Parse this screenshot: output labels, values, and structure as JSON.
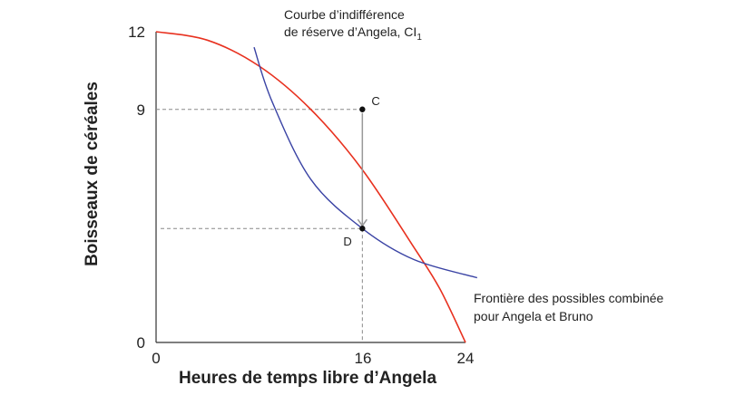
{
  "chart_data": {
    "type": "line",
    "xlabel": "Heures de temps libre d’Angela",
    "ylabel": "Boisseaux de céréales",
    "xlim": [
      0,
      24
    ],
    "ylim": [
      0,
      12
    ],
    "x_ticks": [
      "0",
      "16",
      "24"
    ],
    "y_ticks": [
      "0",
      "9",
      "12"
    ],
    "grid": false,
    "series": [
      {
        "name": "Frontière des possibles combinée pour Angela et Bruno",
        "color": "#e8311f",
        "x": [
          0,
          4,
          8,
          12,
          16,
          20,
          22,
          24
        ],
        "y": [
          12,
          11.67,
          10.67,
          9,
          6.67,
          3.67,
          2.08,
          0
        ]
      },
      {
        "name": "Courbe d’indifférence de réserve d’Angela, CI1",
        "color": "#3a43a4",
        "x": [
          7.6,
          9,
          12,
          16,
          20,
          24.9
        ],
        "y": [
          11.4,
          9.3,
          6.3,
          4.4,
          3.2,
          2.5
        ]
      }
    ],
    "points": [
      {
        "label": "C",
        "x": 16,
        "y": 9
      },
      {
        "label": "D",
        "x": 16,
        "y": 4.4
      }
    ],
    "annotations": {
      "indiff_line1": "Courbe d’indifférence",
      "indiff_line2": "de réserve d’Angela, CI",
      "indiff_sub": "1",
      "frontier_line1": "Frontière des possibles combinée",
      "frontier_line2": "pour Angela et Bruno"
    },
    "colors": {
      "axis": "#333333",
      "guide": "#888888",
      "arrow": "#999999"
    }
  }
}
